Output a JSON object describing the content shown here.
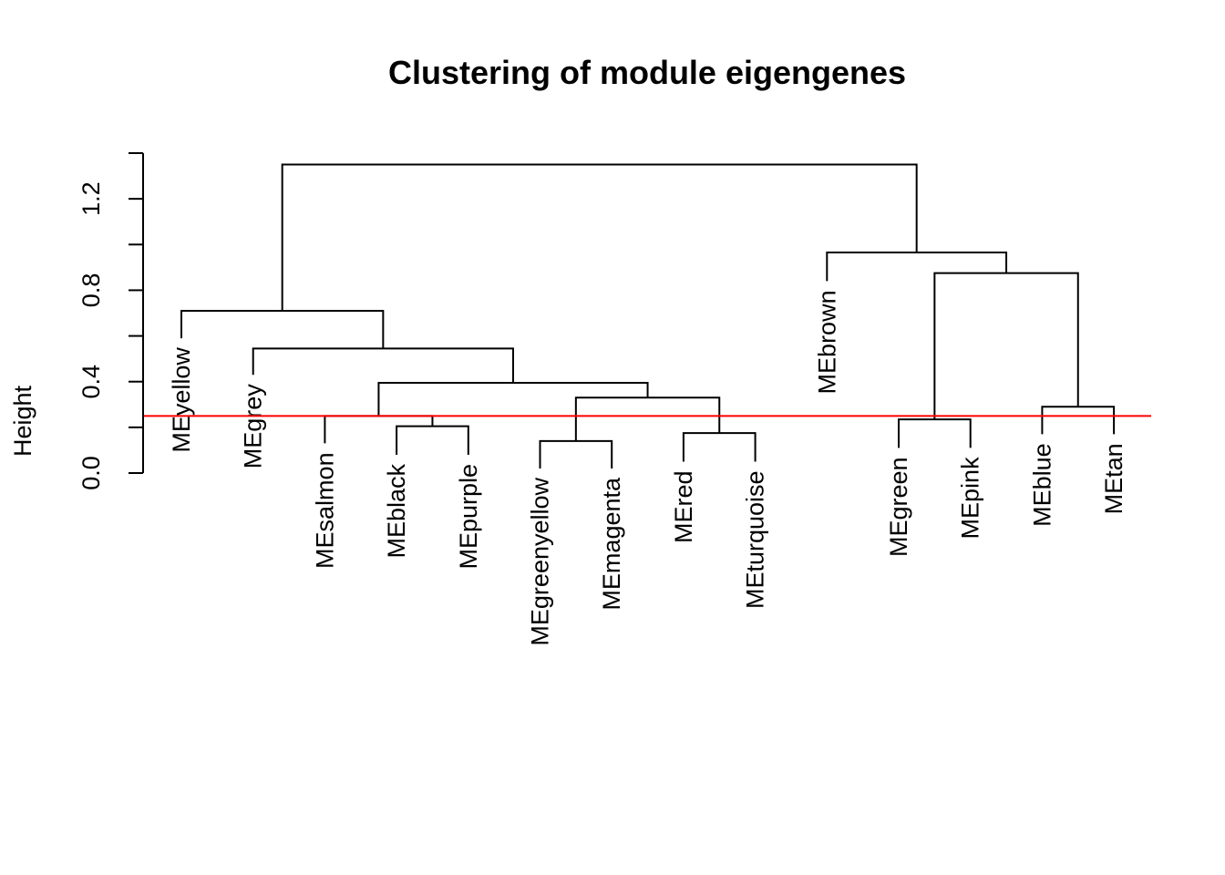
{
  "chart_data": {
    "type": "dendrogram",
    "title": "Clustering of module eigengenes",
    "xlabel": "",
    "ylabel": "Height",
    "ylim": [
      0,
      1.4
    ],
    "y_ticks": [
      0.0,
      0.4,
      0.8,
      1.2
    ],
    "y_tick_labels": [
      "0.0",
      "0.4",
      "0.8",
      "1.2"
    ],
    "cut_height": 0.25,
    "cut_color": "#ff0000",
    "leaves": [
      {
        "name": "MEyellow",
        "leaf_height": 0.59
      },
      {
        "name": "MEgrey",
        "leaf_height": 0.43
      },
      {
        "name": "MEsalmon",
        "leaf_height": 0.13
      },
      {
        "name": "MEblack",
        "leaf_height": 0.08
      },
      {
        "name": "MEpurple",
        "leaf_height": 0.08
      },
      {
        "name": "MEgreenyellow",
        "leaf_height": 0.02
      },
      {
        "name": "MEmagenta",
        "leaf_height": 0.02
      },
      {
        "name": "MEred",
        "leaf_height": 0.05
      },
      {
        "name": "MEturquoise",
        "leaf_height": 0.05
      },
      {
        "name": "MEbrown",
        "leaf_height": 0.84
      },
      {
        "name": "MEgreen",
        "leaf_height": 0.11
      },
      {
        "name": "MEpink",
        "leaf_height": 0.11
      },
      {
        "name": "MEblue",
        "leaf_height": 0.17
      },
      {
        "name": "MEtan",
        "leaf_height": 0.17
      }
    ],
    "merges": [
      {
        "left": "L3",
        "right": "L4",
        "height": 0.205
      },
      {
        "left": "L5",
        "right": "L6",
        "height": 0.14
      },
      {
        "left": "L7",
        "right": "L8",
        "height": 0.175
      },
      {
        "left": "L10",
        "right": "L11",
        "height": 0.235
      },
      {
        "left": "L12",
        "right": "L13",
        "height": 0.29
      },
      {
        "left": "L2",
        "right": "N0",
        "height": 0.25
      },
      {
        "left": "N1",
        "right": "N2",
        "height": 0.33
      },
      {
        "left": "N5",
        "right": "N6",
        "height": 0.395
      },
      {
        "left": "L1",
        "right": "N7",
        "height": 0.545
      },
      {
        "left": "L0",
        "right": "N8",
        "height": 0.71
      },
      {
        "left": "N3",
        "right": "N4",
        "height": 0.875
      },
      {
        "left": "L9",
        "right": "N10",
        "height": 0.965
      },
      {
        "left": "N9",
        "right": "N11",
        "height": 1.35
      }
    ]
  }
}
